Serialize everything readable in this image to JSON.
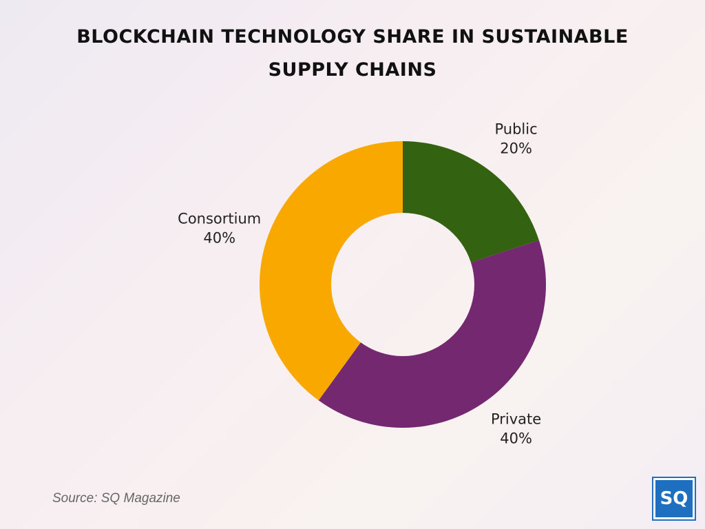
{
  "chart_data": {
    "type": "donut",
    "title": "BLOCKCHAIN TECHNOLOGY SHARE IN SUSTAINABLE SUPPLY CHAINS",
    "categories": [
      "Public",
      "Private",
      "Consortium"
    ],
    "values": [
      20,
      40,
      40
    ],
    "value_labels": [
      "20%",
      "40%",
      "40%"
    ],
    "colors": [
      "#336311",
      "#74286f",
      "#f9a800"
    ],
    "source": "Source: SQ Magazine",
    "logo": "SQ"
  }
}
